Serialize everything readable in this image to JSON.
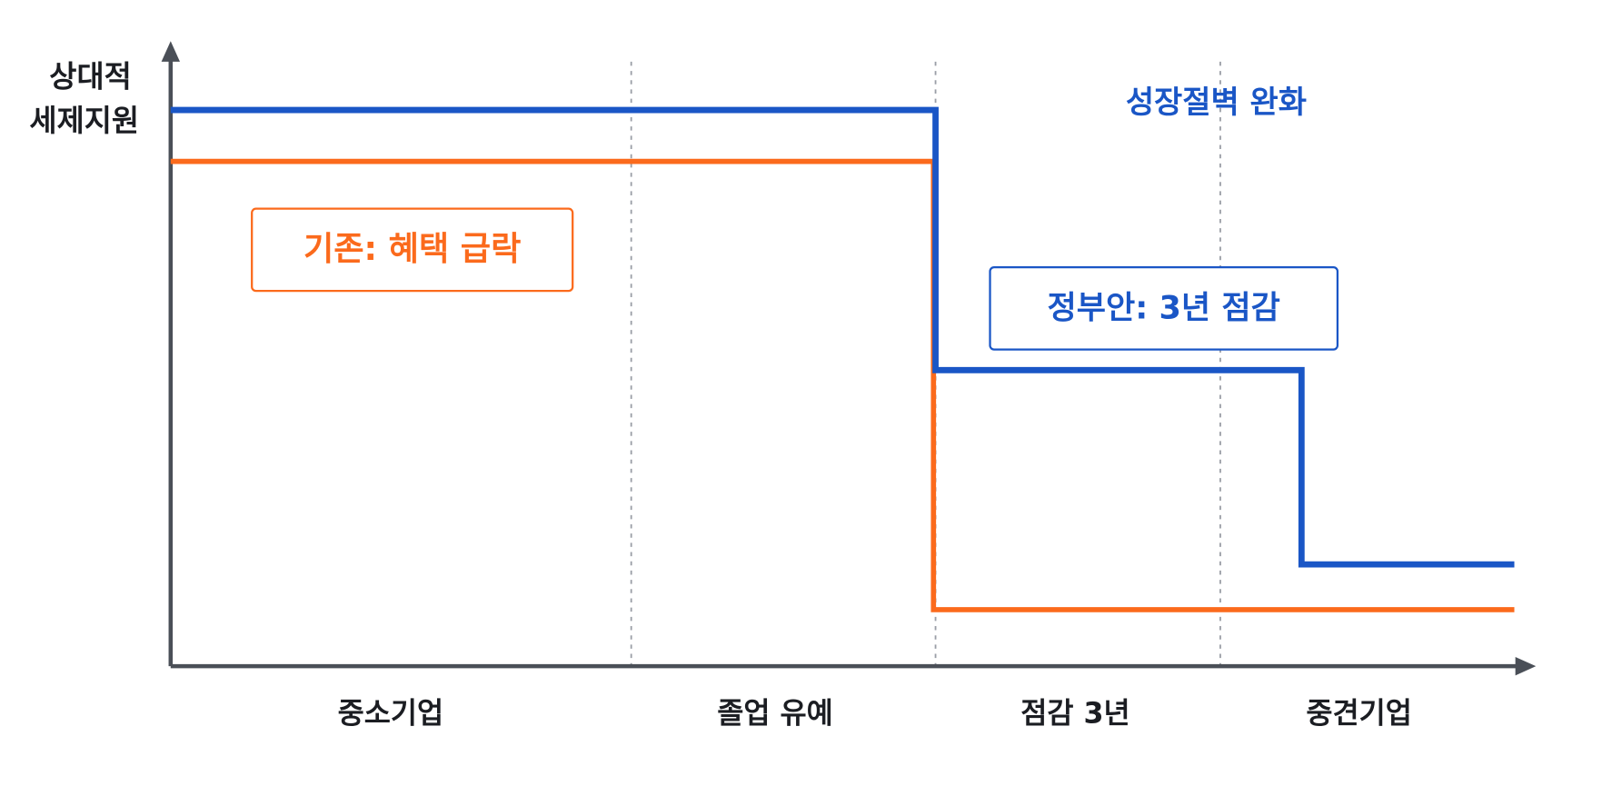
{
  "y_axis": {
    "label": [
      "상대적",
      "세제지원"
    ]
  },
  "x_axis": {
    "labels": [
      "중소기업",
      "졸업 유예",
      "점감 3년",
      "중견기업"
    ]
  },
  "annotations": {
    "top": "성장절벽 완화",
    "existing": "기존: 혜택 급락",
    "proposal": "정부안: 3년 점감"
  }
}
